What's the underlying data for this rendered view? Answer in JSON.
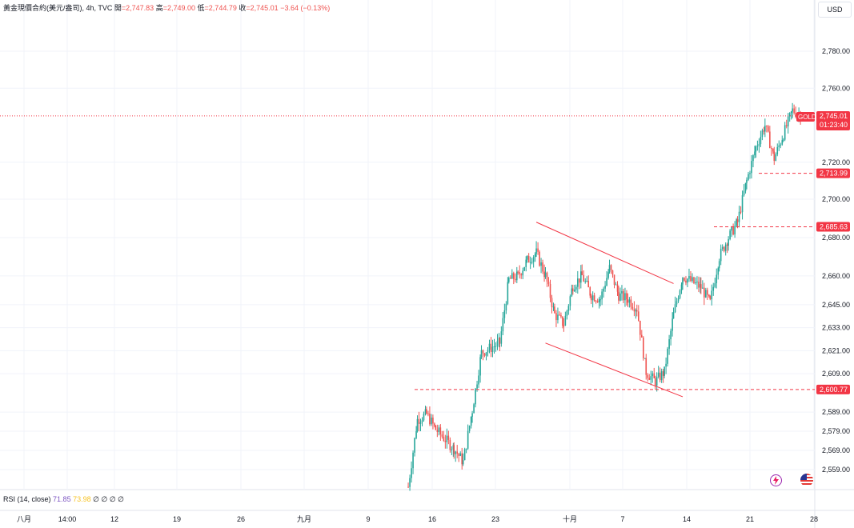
{
  "header": {
    "symbol": "黃金現價合約(美元/盎司), 4h, TVC",
    "open_label": "開",
    "open": "=2,747.83",
    "high_label": "高",
    "high": "=2,749.00",
    "low_label": "低",
    "low": "=2,744.79",
    "close_label": "收",
    "close": "=2,745.01",
    "change": "−3.64 (−0.13%)"
  },
  "currency_button": "USD",
  "price_axis": {
    "ticks": [
      "2,780.00",
      "2,760.00",
      "2,720.00",
      "2,700.00",
      "2,680.00",
      "2,660.00",
      "2,645.00",
      "2,633.00",
      "2,621.00",
      "2,609.00",
      "2,589.00",
      "2,579.00",
      "2,569.00",
      "2,559.00"
    ]
  },
  "time_axis": {
    "ticks": [
      "八月",
      "14:00",
      "12",
      "19",
      "26",
      "九月",
      "9",
      "16",
      "23",
      "十月",
      "7",
      "14",
      "21",
      "28"
    ]
  },
  "labels": {
    "symbol_tag": "GOLD",
    "current_price": "2,745.01",
    "countdown": "01:23:40",
    "level1": "2,713.99",
    "level2": "2,685.63",
    "level3": "2,600.77"
  },
  "rsi": {
    "label": "RSI (14, close)",
    "value": "71.85",
    "ma": "73.98",
    "extra": "∅ ∅ ∅ ∅"
  },
  "colors": {
    "up": "#26a69a",
    "down": "#ef5350",
    "line": "#f23645",
    "text": "#131722"
  },
  "chart_data": {
    "type": "candlestick",
    "title": "黃金現價合約(美元/盎司), 4h, TVC",
    "ylim": [
      2550,
      2790
    ],
    "horizontal_levels": [
      2745.01,
      2713.99,
      2685.63,
      2600.77
    ],
    "channel": {
      "upper": [
        [
          "2024-09-26",
          2688
        ],
        [
          "2024-10-11",
          2656
        ]
      ],
      "lower": [
        [
          "2024-09-27",
          2625
        ],
        [
          "2024-10-12",
          2597
        ]
      ]
    },
    "waypoints": [
      [
        "2024-09-12",
        2550
      ],
      [
        "2024-09-13",
        2585
      ],
      [
        "2024-09-14",
        2588
      ],
      [
        "2024-09-15",
        2580
      ],
      [
        "2024-09-17",
        2570
      ],
      [
        "2024-09-18",
        2563
      ],
      [
        "2024-09-19",
        2590
      ],
      [
        "2024-09-20",
        2620
      ],
      [
        "2024-09-22",
        2625
      ],
      [
        "2024-09-23",
        2658
      ],
      [
        "2024-09-24",
        2660
      ],
      [
        "2024-09-25",
        2668
      ],
      [
        "2024-09-26",
        2672
      ],
      [
        "2024-09-27",
        2660
      ],
      [
        "2024-09-28",
        2640
      ],
      [
        "2024-09-29",
        2635
      ],
      [
        "2024-09-30",
        2655
      ],
      [
        "2024-10-01",
        2660
      ],
      [
        "2024-10-02",
        2650
      ],
      [
        "2024-10-03",
        2648
      ],
      [
        "2024-10-04",
        2664
      ],
      [
        "2024-10-05",
        2650
      ],
      [
        "2024-10-06",
        2648
      ],
      [
        "2024-10-07",
        2643
      ],
      [
        "2024-10-08",
        2610
      ],
      [
        "2024-10-09",
        2605
      ],
      [
        "2024-10-10",
        2610
      ],
      [
        "2024-10-11",
        2640
      ],
      [
        "2024-10-12",
        2660
      ],
      [
        "2024-10-14",
        2654
      ],
      [
        "2024-10-15",
        2646
      ],
      [
        "2024-10-16",
        2670
      ],
      [
        "2024-10-17",
        2680
      ],
      [
        "2024-10-18",
        2688
      ],
      [
        "2024-10-19",
        2710
      ],
      [
        "2024-10-20",
        2728
      ],
      [
        "2024-10-21",
        2740
      ],
      [
        "2024-10-22",
        2722
      ],
      [
        "2024-10-23",
        2735
      ],
      [
        "2024-10-24",
        2748
      ],
      [
        "2024-10-25",
        2745
      ]
    ]
  }
}
